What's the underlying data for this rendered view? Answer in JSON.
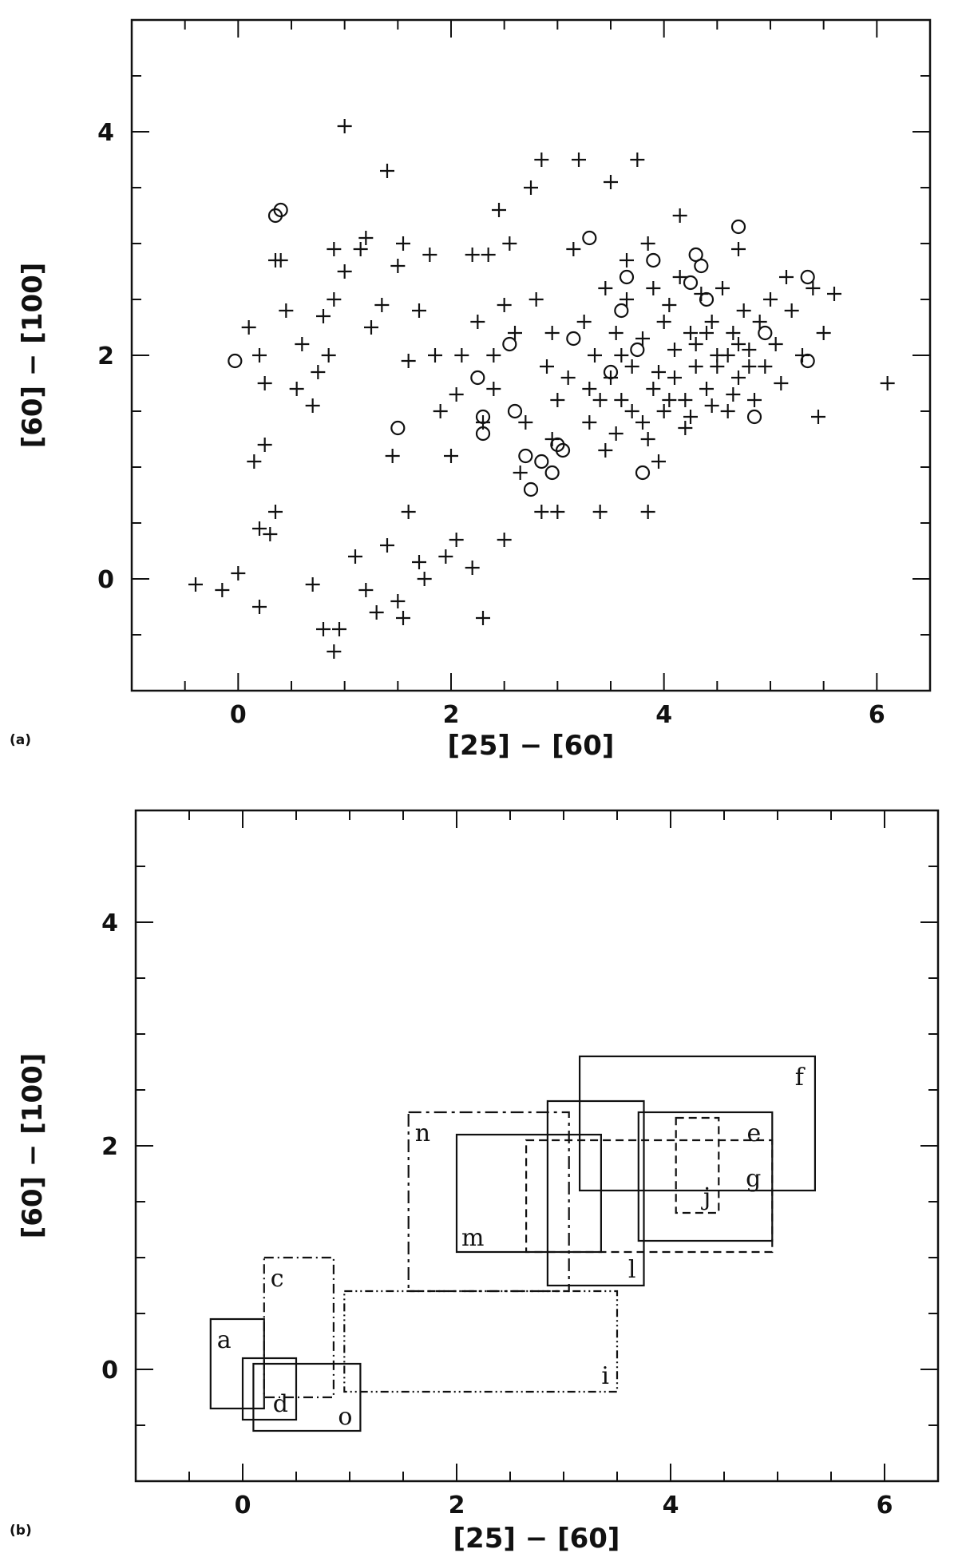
{
  "chart_data": [
    {
      "panel_tag": "(a)",
      "type": "scatter",
      "xlabel": "[25] − [60]",
      "ylabel": "[60] − [100]",
      "xlim": [
        -1,
        6.5
      ],
      "ylim": [
        -1,
        5
      ],
      "xticks": [
        0,
        2,
        4,
        6
      ],
      "yticks": [
        0,
        2,
        4
      ],
      "series": [
        {
          "marker": "plus",
          "points": [
            [
              -0.4,
              -0.05
            ],
            [
              -0.15,
              -0.1
            ],
            [
              0.0,
              0.05
            ],
            [
              0.2,
              -0.25
            ],
            [
              0.7,
              -0.05
            ],
            [
              0.8,
              -0.45
            ],
            [
              0.9,
              -0.65
            ],
            [
              0.95,
              -0.45
            ],
            [
              1.1,
              0.2
            ],
            [
              1.2,
              -0.1
            ],
            [
              1.3,
              -0.3
            ],
            [
              1.4,
              0.3
            ],
            [
              1.5,
              -0.2
            ],
            [
              1.55,
              -0.35
            ],
            [
              1.6,
              0.6
            ],
            [
              1.7,
              0.15
            ],
            [
              1.75,
              0.0
            ],
            [
              1.95,
              0.2
            ],
            [
              2.05,
              0.35
            ],
            [
              2.2,
              0.1
            ],
            [
              2.3,
              -0.35
            ],
            [
              2.5,
              0.35
            ],
            [
              0.15,
              1.05
            ],
            [
              0.2,
              0.45
            ],
            [
              0.3,
              0.4
            ],
            [
              0.35,
              0.6
            ],
            [
              0.25,
              1.2
            ],
            [
              0.1,
              2.25
            ],
            [
              0.2,
              2.0
            ],
            [
              0.25,
              1.75
            ],
            [
              0.4,
              2.85
            ],
            [
              0.45,
              2.4
            ],
            [
              0.55,
              1.7
            ],
            [
              0.6,
              2.1
            ],
            [
              0.7,
              1.55
            ],
            [
              0.75,
              1.85
            ],
            [
              0.8,
              2.35
            ],
            [
              0.85,
              2.0
            ],
            [
              0.9,
              2.95
            ],
            [
              1.0,
              2.75
            ],
            [
              1.0,
              4.05
            ],
            [
              1.15,
              2.95
            ],
            [
              1.2,
              3.05
            ],
            [
              1.25,
              2.25
            ],
            [
              1.35,
              2.45
            ],
            [
              1.4,
              3.65
            ],
            [
              1.45,
              1.1
            ],
            [
              1.5,
              2.8
            ],
            [
              1.55,
              3.0
            ],
            [
              1.7,
              2.4
            ],
            [
              1.8,
              2.9
            ],
            [
              1.85,
              2.0
            ],
            [
              1.9,
              1.5
            ],
            [
              2.0,
              1.1
            ],
            [
              2.05,
              1.65
            ],
            [
              2.1,
              2.0
            ],
            [
              2.2,
              2.9
            ],
            [
              2.25,
              2.3
            ],
            [
              2.3,
              1.4
            ],
            [
              2.35,
              2.9
            ],
            [
              2.4,
              1.7
            ],
            [
              2.45,
              3.3
            ],
            [
              2.5,
              2.45
            ],
            [
              2.55,
              3.0
            ],
            [
              2.6,
              2.2
            ],
            [
              2.65,
              0.95
            ],
            [
              2.7,
              1.4
            ],
            [
              2.75,
              3.5
            ],
            [
              2.8,
              2.5
            ],
            [
              2.85,
              3.75
            ],
            [
              2.9,
              1.9
            ],
            [
              2.95,
              2.2
            ],
            [
              3.0,
              1.6
            ],
            [
              3.1,
              1.8
            ],
            [
              3.15,
              2.95
            ],
            [
              3.2,
              3.75
            ],
            [
              3.25,
              2.3
            ],
            [
              3.3,
              1.4
            ],
            [
              3.35,
              2.0
            ],
            [
              3.4,
              1.6
            ],
            [
              3.45,
              2.6
            ],
            [
              3.5,
              3.55
            ],
            [
              3.55,
              1.3
            ],
            [
              3.6,
              2.0
            ],
            [
              3.65,
              2.5
            ],
            [
              3.7,
              1.5
            ],
            [
              3.75,
              3.75
            ],
            [
              3.8,
              2.15
            ],
            [
              3.85,
              1.25
            ],
            [
              3.9,
              2.6
            ],
            [
              3.95,
              1.85
            ],
            [
              4.0,
              2.3
            ],
            [
              4.05,
              1.6
            ],
            [
              4.1,
              2.05
            ],
            [
              4.15,
              2.7
            ],
            [
              4.2,
              1.35
            ],
            [
              4.25,
              2.2
            ],
            [
              4.3,
              1.9
            ],
            [
              4.35,
              2.55
            ],
            [
              4.4,
              1.7
            ],
            [
              4.45,
              2.3
            ],
            [
              4.5,
              2.0
            ],
            [
              4.55,
              2.6
            ],
            [
              4.6,
              1.5
            ],
            [
              4.65,
              2.2
            ],
            [
              4.7,
              1.8
            ],
            [
              4.75,
              2.4
            ],
            [
              4.8,
              2.05
            ],
            [
              4.85,
              1.6
            ],
            [
              4.9,
              2.3
            ],
            [
              4.95,
              1.9
            ],
            [
              5.0,
              2.5
            ],
            [
              5.05,
              2.1
            ],
            [
              5.1,
              1.75
            ],
            [
              5.2,
              2.4
            ],
            [
              5.3,
              2.0
            ],
            [
              5.4,
              2.6
            ],
            [
              5.5,
              2.2
            ],
            [
              5.6,
              2.55
            ],
            [
              6.1,
              1.75
            ],
            [
              5.45,
              1.45
            ],
            [
              3.85,
              0.6
            ],
            [
              3.4,
              0.6
            ],
            [
              2.85,
              0.6
            ],
            [
              3.0,
              0.6
            ],
            [
              3.5,
              1.8
            ],
            [
              3.7,
              1.9
            ],
            [
              3.9,
              1.7
            ],
            [
              4.1,
              1.8
            ],
            [
              4.3,
              2.1
            ],
            [
              4.5,
              1.9
            ],
            [
              4.7,
              2.1
            ],
            [
              3.6,
              1.6
            ],
            [
              3.8,
              1.4
            ],
            [
              4.0,
              1.5
            ],
            [
              4.2,
              1.6
            ],
            [
              4.4,
              2.2
            ],
            [
              4.6,
              2.0
            ],
            [
              4.8,
              1.9
            ],
            [
              3.3,
              1.7
            ],
            [
              3.55,
              2.2
            ],
            [
              4.05,
              2.45
            ],
            [
              4.25,
              1.45
            ],
            [
              4.45,
              1.55
            ],
            [
              4.65,
              1.65
            ],
            [
              3.45,
              1.15
            ],
            [
              3.95,
              1.05
            ],
            [
              2.95,
              1.25
            ],
            [
              3.65,
              2.85
            ],
            [
              4.15,
              3.25
            ],
            [
              4.7,
              2.95
            ],
            [
              5.15,
              2.7
            ],
            [
              3.85,
              3.0
            ],
            [
              2.4,
              2.0
            ],
            [
              1.6,
              1.95
            ],
            [
              0.35,
              2.85
            ],
            [
              0.9,
              2.5
            ]
          ]
        },
        {
          "marker": "circle",
          "points": [
            [
              -0.03,
              1.95
            ],
            [
              0.35,
              3.25
            ],
            [
              0.4,
              3.3
            ],
            [
              1.5,
              1.35
            ],
            [
              2.3,
              1.45
            ],
            [
              2.3,
              1.3
            ],
            [
              2.25,
              1.8
            ],
            [
              2.55,
              2.1
            ],
            [
              2.6,
              1.5
            ],
            [
              2.7,
              1.1
            ],
            [
              2.75,
              0.8
            ],
            [
              2.85,
              1.05
            ],
            [
              2.95,
              0.95
            ],
            [
              3.0,
              1.2
            ],
            [
              3.05,
              1.15
            ],
            [
              3.15,
              2.15
            ],
            [
              3.3,
              3.05
            ],
            [
              3.5,
              1.85
            ],
            [
              3.6,
              2.4
            ],
            [
              3.65,
              2.7
            ],
            [
              3.75,
              2.05
            ],
            [
              3.8,
              0.95
            ],
            [
              3.9,
              2.85
            ],
            [
              4.25,
              2.65
            ],
            [
              4.3,
              2.9
            ],
            [
              4.35,
              2.8
            ],
            [
              4.4,
              2.5
            ],
            [
              4.7,
              3.15
            ],
            [
              4.85,
              1.45
            ],
            [
              4.95,
              2.2
            ],
            [
              5.35,
              1.95
            ],
            [
              5.35,
              2.7
            ]
          ]
        }
      ]
    },
    {
      "panel_tag": "(b)",
      "type": "boxes",
      "xlabel": "[25] − [60]",
      "ylabel": "[60] − [100]",
      "xlim": [
        -1,
        6.5
      ],
      "ylim": [
        -1,
        5
      ],
      "xticks": [
        0,
        2,
        4,
        6
      ],
      "yticks": [
        0,
        2,
        4
      ],
      "regions": [
        {
          "label": "a",
          "style": "solid",
          "x0": -0.3,
          "x1": 0.2,
          "y0": -0.35,
          "y1": 0.45
        },
        {
          "label": "c",
          "style": "dashdot",
          "x0": 0.2,
          "x1": 0.85,
          "y0": -0.25,
          "y1": 1.0
        },
        {
          "label": "d",
          "style": "solid",
          "x0": 0.0,
          "x1": 0.5,
          "y0": -0.45,
          "y1": 0.1
        },
        {
          "label": "o",
          "style": "solid",
          "x0": 0.1,
          "x1": 1.1,
          "y0": -0.55,
          "y1": 0.05
        },
        {
          "label": "i",
          "style": "dashdotdot",
          "x0": 0.95,
          "x1": 3.5,
          "y0": -0.2,
          "y1": 0.7
        },
        {
          "label": "n",
          "style": "longdash",
          "x0": 1.55,
          "x1": 3.05,
          "y0": 0.7,
          "y1": 2.3
        },
        {
          "label": "m",
          "style": "solid",
          "x0": 2.0,
          "x1": 3.35,
          "y0": 1.05,
          "y1": 2.1
        },
        {
          "label": "l",
          "style": "solid",
          "x0": 2.85,
          "x1": 3.75,
          "y0": 0.75,
          "y1": 2.4
        },
        {
          "label": "g",
          "style": "dashed",
          "x0": 2.65,
          "x1": 4.95,
          "y0": 1.05,
          "y1": 2.05
        },
        {
          "label": "f",
          "style": "solid",
          "x0": 3.15,
          "x1": 5.35,
          "y0": 1.6,
          "y1": 2.8
        },
        {
          "label": "e",
          "style": "solid",
          "x0": 3.7,
          "x1": 4.95,
          "y0": 1.15,
          "y1": 2.3
        },
        {
          "label": "j",
          "style": "dashed",
          "x0": 4.05,
          "x1": 4.45,
          "y0": 1.4,
          "y1": 2.25
        }
      ]
    }
  ]
}
